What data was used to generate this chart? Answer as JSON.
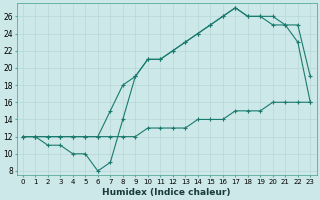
{
  "xlabel": "Humidex (Indice chaleur)",
  "bg_color": "#cce8e8",
  "line_color": "#1a7a6e",
  "grid_color": "#b8d8d8",
  "xlim": [
    -0.5,
    23.5
  ],
  "ylim": [
    7.5,
    27.5
  ],
  "xticks": [
    0,
    1,
    2,
    3,
    4,
    5,
    6,
    7,
    8,
    9,
    10,
    11,
    12,
    13,
    14,
    15,
    16,
    17,
    18,
    19,
    20,
    21,
    22,
    23
  ],
  "yticks": [
    8,
    10,
    12,
    14,
    16,
    18,
    20,
    22,
    24,
    26
  ],
  "line1_x": [
    0,
    1,
    2,
    3,
    4,
    5,
    6,
    7,
    8,
    9,
    10,
    11,
    12,
    13,
    14,
    15,
    16,
    17,
    18,
    19,
    20,
    21,
    22,
    23
  ],
  "line1_y": [
    12,
    12,
    12,
    12,
    12,
    12,
    12,
    12,
    12,
    12,
    13,
    13,
    13,
    13,
    14,
    14,
    14,
    15,
    15,
    15,
    16,
    16,
    16,
    16
  ],
  "line2_x": [
    0,
    1,
    2,
    3,
    4,
    5,
    6,
    7,
    8,
    9,
    10,
    11,
    12,
    13,
    14,
    15,
    16,
    17,
    18,
    19,
    20,
    21,
    22,
    23
  ],
  "line2_y": [
    12,
    12,
    12,
    12,
    12,
    12,
    12,
    15,
    18,
    19,
    21,
    21,
    22,
    23,
    24,
    25,
    26,
    27,
    26,
    26,
    25,
    25,
    25,
    19
  ],
  "line3_x": [
    0,
    1,
    2,
    3,
    4,
    5,
    6,
    7,
    8,
    9,
    10,
    11,
    12,
    13,
    14,
    15,
    16,
    17,
    18,
    19,
    20,
    21,
    22,
    23
  ],
  "line3_y": [
    12,
    12,
    11,
    11,
    10,
    10,
    8,
    9,
    14,
    19,
    21,
    21,
    22,
    23,
    24,
    25,
    26,
    27,
    26,
    26,
    26,
    25,
    23,
    16
  ]
}
